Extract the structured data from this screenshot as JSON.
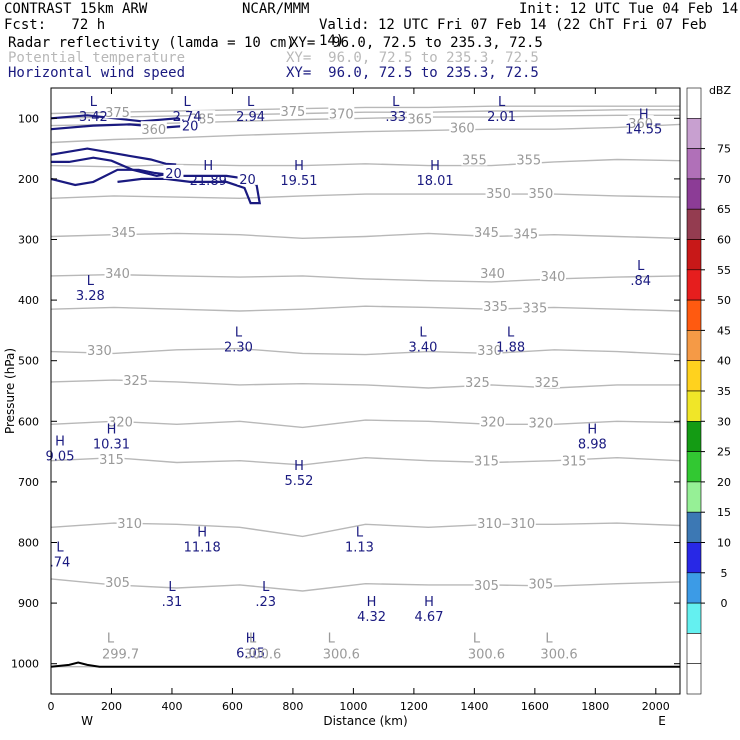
{
  "header": {
    "title_left": "CONTRAST 15km ARW",
    "title_center": "NCAR/MMM",
    "init": "Init: 12 UTC Tue 04 Feb 14",
    "fcst": "Fcst:   72 h",
    "valid": "Valid: 12 UTC Fri 07 Feb 14 (22 ChT Fri 07 Feb 14)"
  },
  "fields": [
    {
      "name": "Radar reflectivity (lamda = 10 cm)",
      "xy": "XY=  96.0, 72.5 to 235.3, 72.5",
      "color": "#000000"
    },
    {
      "name": "Potential temperature",
      "xy": "XY=  96.0, 72.5 to 235.3, 72.5",
      "color": "#b8b8b8"
    },
    {
      "name": "Horizontal wind speed",
      "xy": "XY=  96.0, 72.5 to 235.3, 72.5",
      "color": "#1a1a80"
    }
  ],
  "colorbar": {
    "unit": "dBZ",
    "labels": [
      "75",
      "70",
      "65",
      "60",
      "55",
      "50",
      "45",
      "40",
      "35",
      "30",
      "25",
      "20",
      "15",
      "10",
      "5",
      "0"
    ],
    "colors": [
      "#ffffff",
      "#c8a0d0",
      "#b070b8",
      "#8c3c96",
      "#943c50",
      "#c81818",
      "#e61e1e",
      "#ff5a10",
      "#f59a46",
      "#ffd21e",
      "#f0e628",
      "#149b14",
      "#32c832",
      "#96f096",
      "#3c78b4",
      "#2828e6",
      "#3c9be6",
      "#64f0f0",
      "#ffffff",
      "#ffffff"
    ]
  },
  "chart_data": {
    "type": "cross-section",
    "xlabel": "Distance (km)",
    "ylabel": "Pressure (hPa)",
    "xlim": [
      0,
      2080
    ],
    "ylim": [
      1050,
      50
    ],
    "xticks": [
      "0",
      "200",
      "400",
      "600",
      "800",
      "1000",
      "1200",
      "1400",
      "1600",
      "1800",
      "2000"
    ],
    "yticks": [
      "100",
      "200",
      "300",
      "400",
      "500",
      "600",
      "700",
      "800",
      "900",
      "1000"
    ],
    "x_left_label": "W",
    "x_right_label": "E",
    "theta_levels": [
      {
        "label": "300",
        "p": [
          1005,
          1005,
          1005,
          1005,
          1005,
          1005,
          1005,
          1005,
          1005,
          1005,
          1005
        ]
      },
      {
        "label": "305",
        "p": [
          860,
          870,
          875,
          870,
          880,
          868,
          870,
          870,
          872,
          868,
          865
        ]
      },
      {
        "label": "310",
        "p": [
          775,
          768,
          770,
          775,
          790,
          770,
          775,
          770,
          770,
          768,
          772
        ]
      },
      {
        "label": "315",
        "p": [
          665,
          660,
          668,
          665,
          672,
          660,
          665,
          668,
          665,
          660,
          665
        ]
      },
      {
        "label": "320",
        "p": [
          605,
          600,
          605,
          600,
          610,
          598,
          600,
          605,
          605,
          600,
          602
        ]
      },
      {
        "label": "325",
        "p": [
          535,
          532,
          535,
          540,
          538,
          540,
          545,
          540,
          545,
          540,
          540
        ]
      },
      {
        "label": "330",
        "p": [
          485,
          488,
          482,
          480,
          488,
          490,
          485,
          488,
          482,
          485,
          490
        ]
      },
      {
        "label": "335",
        "p": [
          415,
          412,
          415,
          418,
          415,
          410,
          412,
          415,
          412,
          415,
          418
        ]
      },
      {
        "label": "340",
        "p": [
          360,
          358,
          360,
          362,
          360,
          365,
          368,
          370,
          365,
          362,
          360
        ]
      },
      {
        "label": "345",
        "p": [
          295,
          292,
          290,
          292,
          298,
          295,
          290,
          295,
          292,
          295,
          298
        ]
      },
      {
        "label": "350",
        "p": [
          232,
          228,
          230,
          232,
          228,
          225,
          225,
          225,
          225,
          228,
          230
        ]
      },
      {
        "label": "355",
        "p": [
          178,
          180,
          176,
          178,
          178,
          175,
          178,
          178,
          172,
          168,
          170
        ]
      },
      {
        "label": "360",
        "p": [
          140,
          135,
          132,
          128,
          125,
          122,
          120,
          118,
          118,
          115,
          110
        ]
      },
      {
        "label": "365",
        "p": [
          112,
          110,
          108,
          105,
          102,
          100,
          98,
          98,
          96,
          95,
          95
        ]
      },
      {
        "label": "370",
        "p": [
          100,
          98,
          96,
          94,
          92,
          90,
          90,
          88,
          88,
          86,
          86
        ]
      },
      {
        "label": "375",
        "p": [
          92,
          90,
          88,
          86,
          84,
          82,
          82,
          80,
          80,
          80,
          80
        ]
      }
    ],
    "theta_labels": [
      {
        "t": "375",
        "x": 220,
        "p": 90
      },
      {
        "t": "385",
        "x": 500,
        "p": 100
      },
      {
        "t": "375",
        "x": 800,
        "p": 88
      },
      {
        "t": "370",
        "x": 960,
        "p": 92
      },
      {
        "t": "365",
        "x": 1220,
        "p": 100
      },
      {
        "t": "360",
        "x": 1360,
        "p": 115
      },
      {
        "t": "360",
        "x": 340,
        "p": 118
      },
      {
        "t": "360",
        "x": 1950,
        "p": 108
      },
      {
        "t": "355",
        "x": 1400,
        "p": 168
      },
      {
        "t": "355",
        "x": 1580,
        "p": 168
      },
      {
        "t": "350",
        "x": 1480,
        "p": 223
      },
      {
        "t": "350",
        "x": 1620,
        "p": 223
      },
      {
        "t": "345",
        "x": 240,
        "p": 288
      },
      {
        "t": "345",
        "x": 1440,
        "p": 288
      },
      {
        "t": "345",
        "x": 1570,
        "p": 290
      },
      {
        "t": "340",
        "x": 220,
        "p": 355
      },
      {
        "t": "340",
        "x": 1460,
        "p": 355
      },
      {
        "t": "340",
        "x": 1660,
        "p": 360
      },
      {
        "t": "335",
        "x": 1470,
        "p": 410
      },
      {
        "t": "335",
        "x": 1600,
        "p": 412
      },
      {
        "t": "330",
        "x": 160,
        "p": 482
      },
      {
        "t": "330",
        "x": 1450,
        "p": 482
      },
      {
        "t": "325",
        "x": 280,
        "p": 532
      },
      {
        "t": "325",
        "x": 1410,
        "p": 535
      },
      {
        "t": "325",
        "x": 1640,
        "p": 535
      },
      {
        "t": "320",
        "x": 230,
        "p": 600
      },
      {
        "t": "320",
        "x": 1460,
        "p": 600
      },
      {
        "t": "320",
        "x": 1620,
        "p": 602
      },
      {
        "t": "315",
        "x": 200,
        "p": 662
      },
      {
        "t": "315",
        "x": 1440,
        "p": 665
      },
      {
        "t": "315",
        "x": 1730,
        "p": 665
      },
      {
        "t": "310",
        "x": 260,
        "p": 768
      },
      {
        "t": "310",
        "x": 1450,
        "p": 768
      },
      {
        "t": "310",
        "x": 1560,
        "p": 768
      },
      {
        "t": "305",
        "x": 220,
        "p": 865
      },
      {
        "t": "305",
        "x": 1440,
        "p": 870
      },
      {
        "t": "305",
        "x": 1620,
        "p": 868
      }
    ],
    "wind_contours": [
      {
        "label": "20",
        "points": [
          [
            0,
            100
          ],
          [
            120,
            95
          ],
          [
            300,
            105
          ],
          [
            420,
            100
          ],
          [
            460,
            112
          ],
          [
            380,
            115
          ],
          [
            260,
            110
          ],
          [
            140,
            112
          ],
          [
            0,
            118
          ]
        ]
      },
      {
        "label": "20",
        "points": [
          [
            0,
            160
          ],
          [
            120,
            150
          ],
          [
            260,
            162
          ],
          [
            330,
            168
          ],
          [
            380,
            175
          ],
          [
            410,
            176
          ],
          [
            405,
            190
          ],
          [
            350,
            195
          ],
          [
            270,
            185
          ],
          [
            200,
            170
          ],
          [
            140,
            165
          ],
          [
            60,
            172
          ],
          [
            0,
            172
          ]
        ]
      },
      {
        "label": "20",
        "points": [
          [
            0,
            200
          ],
          [
            80,
            210
          ],
          [
            140,
            205
          ],
          [
            220,
            185
          ],
          [
            290,
            185
          ],
          [
            340,
            190
          ],
          [
            420,
            195
          ],
          [
            500,
            195
          ],
          [
            580,
            195
          ],
          [
            650,
            200
          ],
          [
            680,
            210
          ],
          [
            690,
            240
          ],
          [
            660,
            240
          ],
          [
            640,
            215
          ],
          [
            580,
            205
          ],
          [
            460,
            205
          ],
          [
            380,
            200
          ],
          [
            300,
            200
          ],
          [
            220,
            205
          ]
        ]
      }
    ],
    "wind_extrema": [
      {
        "t": "L",
        "v": "3.42",
        "x": 140,
        "p": 80
      },
      {
        "t": "L",
        "v": "2.74",
        "x": 450,
        "p": 80
      },
      {
        "t": "L",
        "v": "2.94",
        "x": 660,
        "p": 80
      },
      {
        "t": "L",
        "v": ".33",
        "x": 1140,
        "p": 80
      },
      {
        "t": "L",
        "v": "2.01",
        "x": 1490,
        "p": 80
      },
      {
        "t": "H",
        "v": "14.55",
        "x": 1960,
        "p": 100
      },
      {
        "t": "H",
        "v": "21.89",
        "x": 520,
        "p": 185
      },
      {
        "t": "H",
        "v": "19.51",
        "x": 820,
        "p": 185
      },
      {
        "t": "H",
        "v": "18.01",
        "x": 1270,
        "p": 185
      },
      {
        "t": "L",
        "v": "3.28",
        "x": 130,
        "p": 375
      },
      {
        "t": "L",
        "v": ".84",
        "x": 1950,
        "p": 350
      },
      {
        "t": "L",
        "v": "2.30",
        "x": 620,
        "p": 460
      },
      {
        "t": "L",
        "v": "3.40",
        "x": 1230,
        "p": 460
      },
      {
        "t": "L",
        "v": "1.88",
        "x": 1520,
        "p": 460
      },
      {
        "t": "H",
        "v": "10.31",
        "x": 200,
        "p": 620
      },
      {
        "t": "H",
        "v": "8.98",
        "x": 1790,
        "p": 620
      },
      {
        "t": "H",
        "v": "9.05",
        "x": 0,
        "p": 640
      },
      {
        "t": "H",
        "v": "5.52",
        "x": 820,
        "p": 680
      },
      {
        "t": "H",
        "v": "11.18",
        "x": 500,
        "p": 790
      },
      {
        "t": "L",
        "v": "1.13",
        "x": 1020,
        "p": 790
      },
      {
        "t": "L",
        "v": ".74",
        "x": 15,
        "p": 815
      },
      {
        "t": "L",
        "v": ".31",
        "x": 400,
        "p": 880
      },
      {
        "t": "L",
        "v": ".23",
        "x": 710,
        "p": 880
      },
      {
        "t": "H",
        "v": "4.32",
        "x": 1060,
        "p": 905
      },
      {
        "t": "H",
        "v": "4.67",
        "x": 1250,
        "p": 905
      },
      {
        "t": "H",
        "v": "6.05",
        "x": 660,
        "p": 965
      }
    ],
    "theta_extrema": [
      {
        "t": "L",
        "v": "299.7",
        "x": 230,
        "p": 985
      },
      {
        "t": "L",
        "v": "300.6",
        "x": 700,
        "p": 985
      },
      {
        "t": "L",
        "v": "300.6",
        "x": 960,
        "p": 985
      },
      {
        "t": "L",
        "v": "300.6",
        "x": 1440,
        "p": 985
      },
      {
        "t": "L",
        "v": "300.6",
        "x": 1680,
        "p": 985
      }
    ],
    "terrain": [
      [
        0,
        1005
      ],
      [
        60,
        1002
      ],
      [
        90,
        998
      ],
      [
        120,
        1002
      ],
      [
        160,
        1005
      ],
      [
        2080,
        1005
      ]
    ]
  }
}
